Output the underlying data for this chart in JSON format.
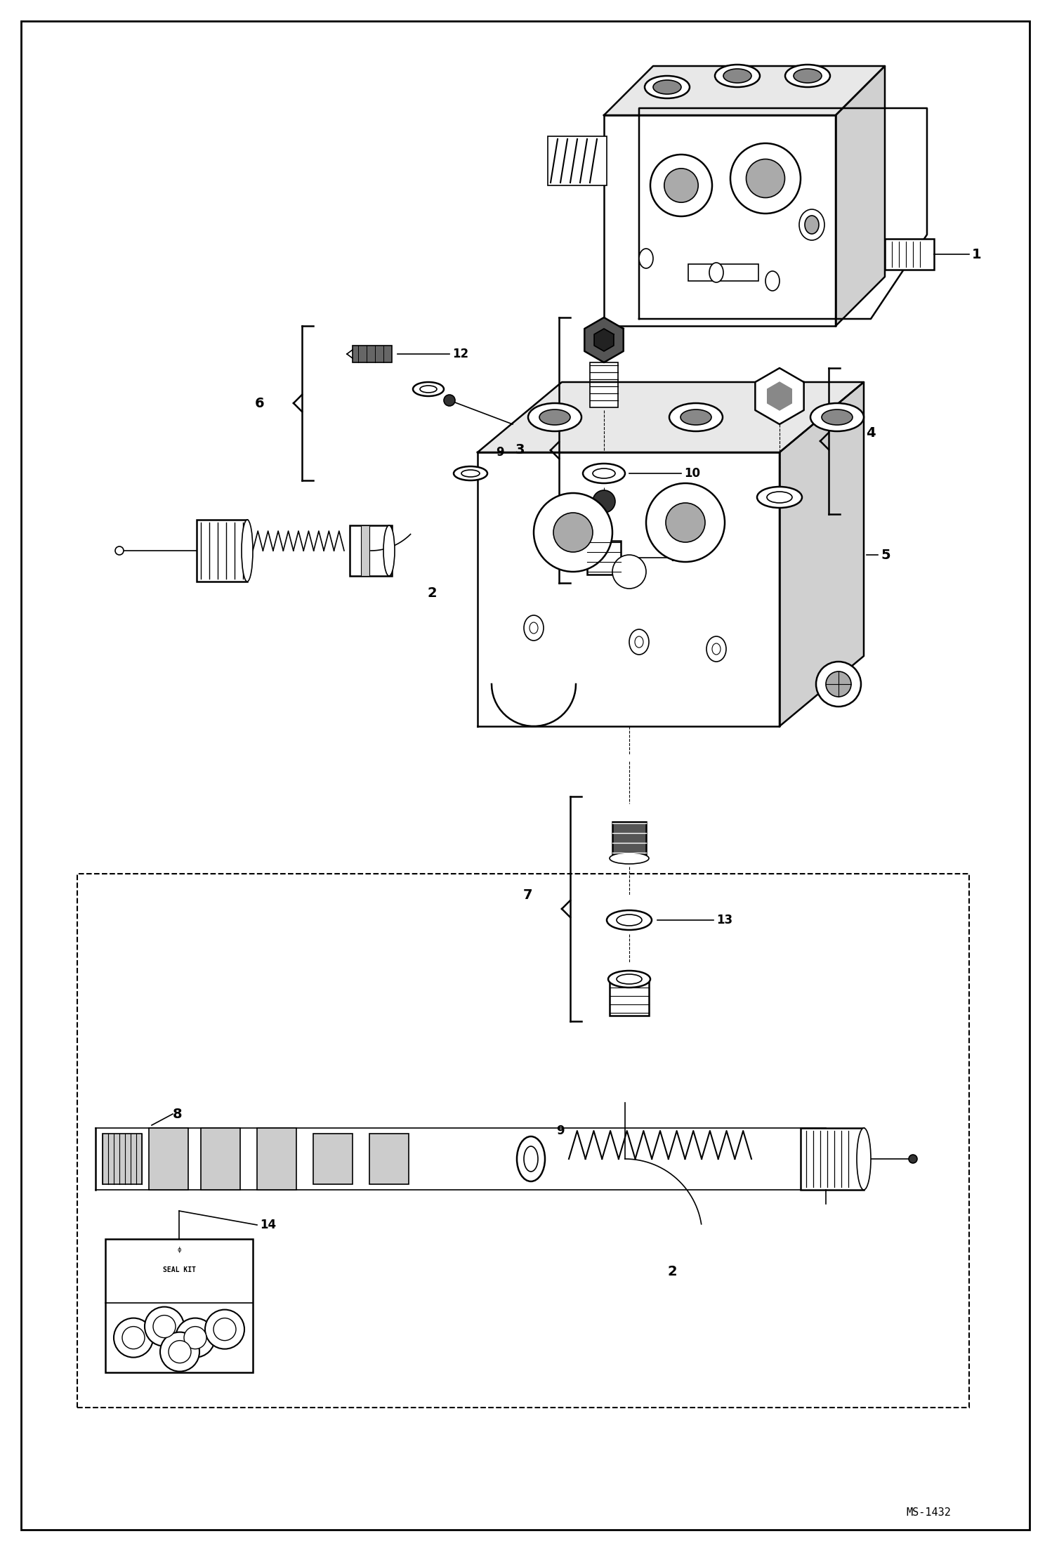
{
  "background_color": "#ffffff",
  "border_color": "#000000",
  "text_color": "#000000",
  "ms_label": "MS-1432",
  "lw": 1.2,
  "lw_thick": 1.8,
  "figsize": [
    14.98,
    21.94
  ],
  "dpi": 100,
  "label_fontsize": 12
}
